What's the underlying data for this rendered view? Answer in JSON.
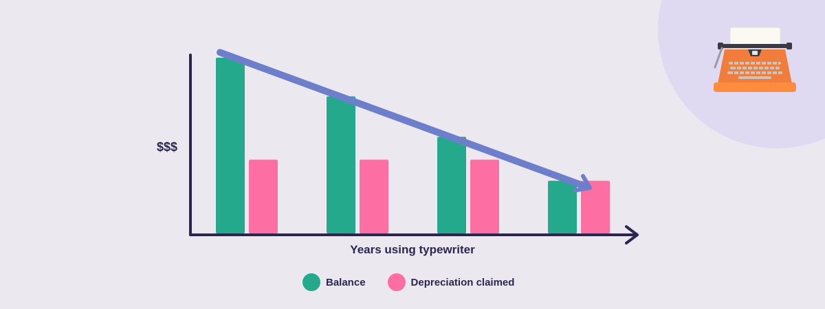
{
  "chart_data": {
    "type": "bar",
    "title": "",
    "xlabel": "Years using typewriter",
    "ylabel": "$$$",
    "categories": [
      "",
      "",
      "",
      ""
    ],
    "ylim": [
      0,
      100
    ],
    "series": [
      {
        "name": "Balance",
        "color": "#24a98c",
        "values": [
          100,
          78,
          55,
          30
        ]
      },
      {
        "name": "Depreciation claimed",
        "color": "#fd6ea3",
        "values": [
          42,
          42,
          42,
          30
        ]
      }
    ],
    "annotations": [
      {
        "type": "trend-arrow",
        "color": "#6d7fcb",
        "from_value": 103,
        "to_value": 26
      }
    ],
    "grid": false,
    "legend_position": "bottom-center"
  },
  "colors": {
    "axis": "#2a2650",
    "background": "#ebe8f0",
    "circle": "#dfd9f1"
  },
  "illustration": {
    "icon": "typewriter-icon"
  }
}
